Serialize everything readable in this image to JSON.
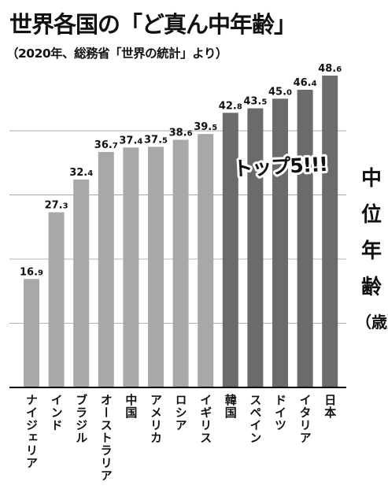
{
  "title": "世界各国の「ど真ん中年齢」",
  "subtitle": "（2020年、総務省「世界の統計」より）",
  "ylabel_chars": [
    "中",
    "位",
    "年",
    "齢"
  ],
  "unit": "（歳）",
  "callout": "トップ5!!!",
  "colors": {
    "top5": "#6b6b6b",
    "others": "#a8a8a8",
    "grid": "#9a9a9a",
    "text": "#111111"
  },
  "chart_data": {
    "type": "bar",
    "title": "世界各国の「ど真ん中年齢」",
    "subtitle": "（2020年、総務省「世界の統計」より）",
    "categories": [
      "ナイジェリア",
      "インド",
      "ブラジル",
      "オーストラリア",
      "中国",
      "アメリカ",
      "ロシア",
      "イギリス",
      "韓国",
      "スペイン",
      "ドイツ",
      "イタリア",
      "日本"
    ],
    "values": [
      16.9,
      27.3,
      32.4,
      36.7,
      37.4,
      37.5,
      38.6,
      39.5,
      42.8,
      43.5,
      45.0,
      46.4,
      48.6
    ],
    "highlighted": [
      "韓国",
      "スペイン",
      "ドイツ",
      "イタリア",
      "日本"
    ],
    "ylabel": "中位年齢（歳）",
    "ylim": [
      0,
      48.6
    ],
    "grid": true,
    "gridlines": [
      10,
      20,
      30,
      40
    ]
  }
}
